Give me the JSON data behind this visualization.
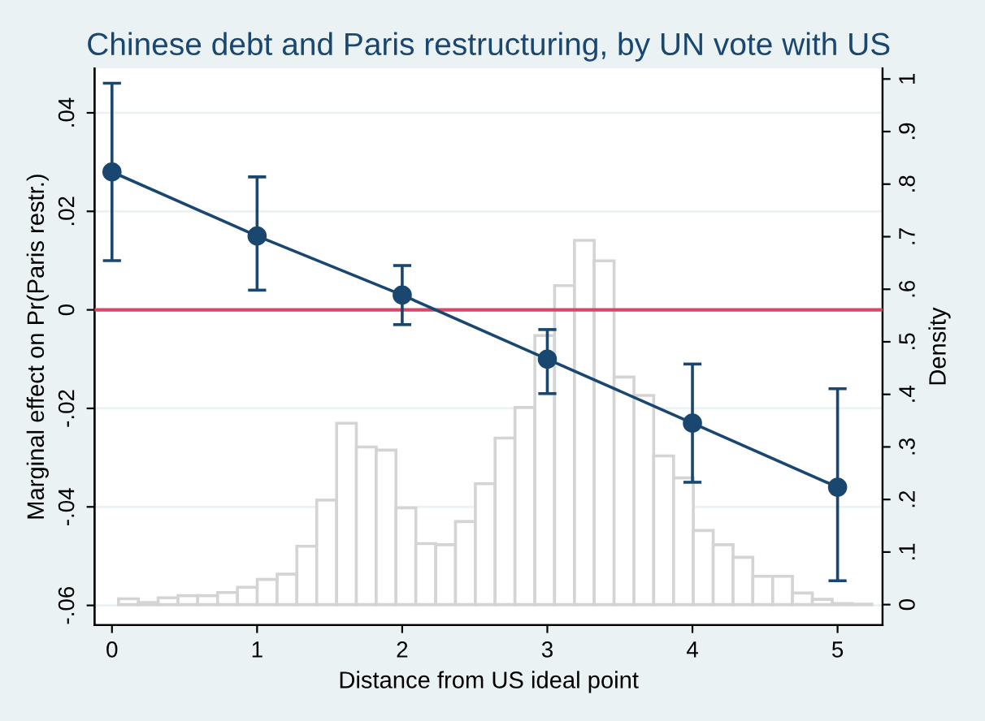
{
  "chart_data": {
    "type": "line",
    "title": "Chinese debt and Paris restructuring, by UN vote with US",
    "xlabel": "Distance from US ideal point",
    "ylabel": "Marginal effect on Pr(Paris restr.)",
    "y2label": "Density",
    "xlim": [
      -0.12,
      5.31
    ],
    "xticks": [
      0,
      1,
      2,
      3,
      4,
      5
    ],
    "ylim": [
      -0.064,
      0.049
    ],
    "yticks": [
      {
        "value": -0.06,
        "label": "-.06"
      },
      {
        "value": -0.04,
        "label": "-.04"
      },
      {
        "value": -0.02,
        "label": "-.02"
      },
      0,
      {
        "value": 0.02,
        "label": ".02"
      },
      {
        "value": 0.04,
        "label": ".04"
      }
    ],
    "y2lim": [
      -0.039,
      1.02
    ],
    "y2ticks": [
      0,
      {
        "value": 0.1,
        "label": ".1"
      },
      {
        "value": 0.2,
        "label": ".2"
      },
      {
        "value": 0.3,
        "label": ".3"
      },
      {
        "value": 0.4,
        "label": ".4"
      },
      {
        "value": 0.5,
        "label": ".5"
      },
      {
        "value": 0.6,
        "label": ".6"
      },
      {
        "value": 0.7,
        "label": ".7"
      },
      {
        "value": 0.8,
        "label": ".8"
      },
      {
        "value": 0.9,
        "label": ".9"
      },
      1
    ],
    "grid": "y",
    "legend": false,
    "marker": "circle",
    "line_style": "solid",
    "ref_lines": [
      {
        "axis": "y",
        "value": 0,
        "color": "#d6476a"
      }
    ],
    "series": [
      {
        "type": "histogram",
        "axis": "y2",
        "color": "#d4d4d4",
        "bins": [
          0.045,
          0.182,
          0.318,
          0.455,
          0.591,
          0.728,
          0.865,
          1.001,
          1.138,
          1.274,
          1.411,
          1.548,
          1.684,
          1.821,
          1.957,
          2.094,
          2.231,
          2.367,
          2.504,
          2.64,
          2.777,
          2.914,
          3.05,
          3.187,
          3.323,
          3.46,
          3.597,
          3.733,
          3.87,
          4.006,
          4.143,
          4.28,
          4.416,
          4.553,
          4.689,
          4.826,
          4.963,
          5.099,
          5.236
        ],
        "values": [
          0.011,
          0.004,
          0.013,
          0.017,
          0.017,
          0.023,
          0.033,
          0.048,
          0.058,
          0.111,
          0.199,
          0.345,
          0.3,
          0.294,
          0.184,
          0.116,
          0.114,
          0.158,
          0.23,
          0.317,
          0.375,
          0.512,
          0.607,
          0.693,
          0.654,
          0.433,
          0.398,
          0.283,
          0.241,
          0.141,
          0.114,
          0.09,
          0.054,
          0.054,
          0.022,
          0.01,
          0.002,
          0.001
        ]
      },
      {
        "color": "#1a476f",
        "x": [
          0,
          1,
          2,
          3,
          4,
          5
        ],
        "values": [
          0.028,
          0.015,
          0.003,
          -0.01,
          -0.023,
          -0.036
        ],
        "errors": [
          [
            0.01,
            0.046
          ],
          [
            0.004,
            0.027
          ],
          [
            -0.003,
            0.009
          ],
          [
            -0.017,
            -0.004
          ],
          [
            -0.035,
            -0.011
          ],
          [
            -0.055,
            -0.016
          ]
        ]
      }
    ]
  }
}
